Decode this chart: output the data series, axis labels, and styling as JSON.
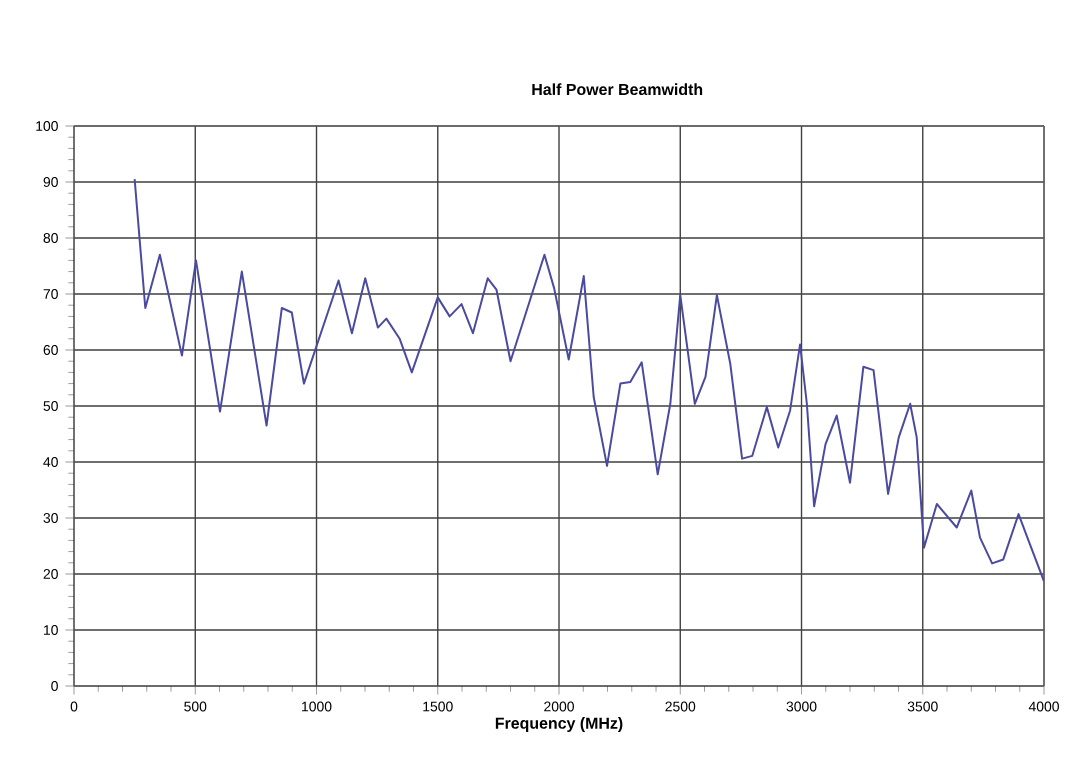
{
  "chart_data": {
    "type": "line",
    "title": "Half Power Beamwidth",
    "xlabel": "Frequency (MHz)",
    "x": [
      250,
      294,
      354,
      445,
      503,
      602,
      692,
      794,
      857,
      898,
      948,
      1091,
      1146,
      1201,
      1253,
      1288,
      1343,
      1393,
      1500,
      1549,
      1598,
      1645,
      1706,
      1742,
      1800,
      1940,
      1980,
      2040,
      2102,
      2143,
      2198,
      2253,
      2294,
      2341,
      2407,
      2459,
      2500,
      2560,
      2604,
      2651,
      2706,
      2755,
      2797,
      2857,
      2904,
      2953,
      2994,
      3022,
      3052,
      3099,
      3145,
      3200,
      3255,
      3297,
      3357,
      3401,
      3448,
      3475,
      3505,
      3558,
      3640,
      3700,
      3736,
      3786,
      3832,
      3895,
      3942,
      4000
    ],
    "series": [
      {
        "color": "#4a4aa0",
        "values": [
          90.5,
          67.5,
          77,
          59,
          76,
          49,
          74,
          46.5,
          67.5,
          66.7,
          54,
          72.4,
          63,
          72.8,
          64,
          65.6,
          62,
          56,
          69.4,
          66,
          68.2,
          63,
          72.8,
          70.8,
          58,
          77,
          71,
          58.3,
          73.2,
          51.6,
          39.3,
          54,
          54.3,
          57.8,
          37.8,
          50.4,
          69.8,
          50.4,
          55.2,
          69.8,
          57.6,
          40.6,
          41.1,
          49.8,
          42.6,
          49.2,
          61,
          50.4,
          32.1,
          43.2,
          48.3,
          36.3,
          57,
          56.4,
          34.3,
          44.4,
          50.4,
          44.4,
          24.7,
          32.5,
          28.3,
          34.9,
          26.5,
          21.9,
          22.6,
          30.7,
          25.3,
          18.7
        ]
      }
    ],
    "xlim": [
      0,
      4000
    ],
    "ylim": [
      0,
      100
    ],
    "xticks": [
      0,
      500,
      1000,
      1500,
      2000,
      2500,
      3000,
      3500,
      4000
    ],
    "yticks": [
      0,
      10,
      20,
      30,
      40,
      50,
      60,
      70,
      80,
      90,
      100
    ],
    "grid": true,
    "marker": "none",
    "line_style": "solid"
  }
}
